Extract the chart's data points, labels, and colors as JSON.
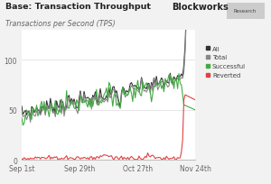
{
  "title": "Base: Transaction Throughput",
  "subtitle": "Transactions per Second (TPS)",
  "branding": "Blockworks",
  "branding_sub": "Research",
  "bg_color": "#f2f2f2",
  "plot_bg_color": "#ffffff",
  "yticks": [
    0,
    50,
    100
  ],
  "ylim": [
    0,
    130
  ],
  "xtick_labels": [
    "Sep 1st",
    "Sep 29th",
    "Oct 27th",
    "Nov 24th"
  ],
  "xtick_positions": [
    0.0,
    0.333,
    0.667,
    1.0
  ],
  "n_points": 140,
  "legend": [
    {
      "label": "All",
      "color": "#333333"
    },
    {
      "label": "Total",
      "color": "#888888"
    },
    {
      "label": "Successful",
      "color": "#44aa44"
    },
    {
      "label": "Reverted",
      "color": "#dd4444"
    }
  ]
}
